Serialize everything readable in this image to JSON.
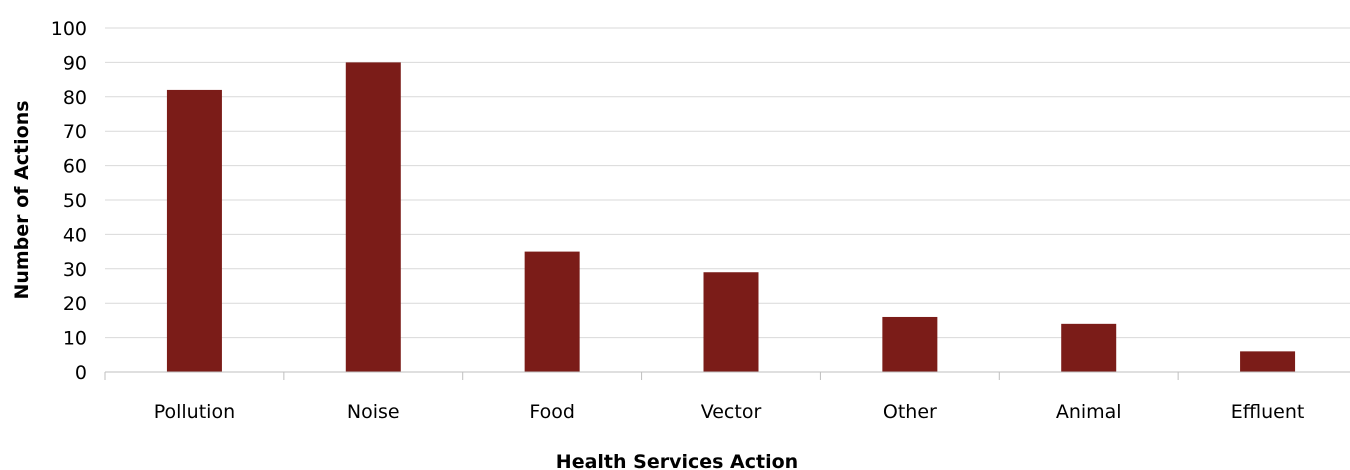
{
  "chart_data": {
    "type": "bar",
    "categories": [
      "Pollution",
      "Noise",
      "Food",
      "Vector",
      "Other",
      "Animal",
      "Effluent"
    ],
    "series": [
      {
        "values": [
          82,
          90,
          35,
          29,
          16,
          14,
          6
        ],
        "color": "#7b1c18"
      }
    ],
    "xlabel": "Health Services Action",
    "ylabel": "Number of Actions",
    "ylim": [
      0,
      100
    ],
    "yticks": [
      0,
      10,
      20,
      30,
      40,
      50,
      60,
      70,
      80,
      90,
      100
    ],
    "grid": true,
    "legend": "none"
  }
}
